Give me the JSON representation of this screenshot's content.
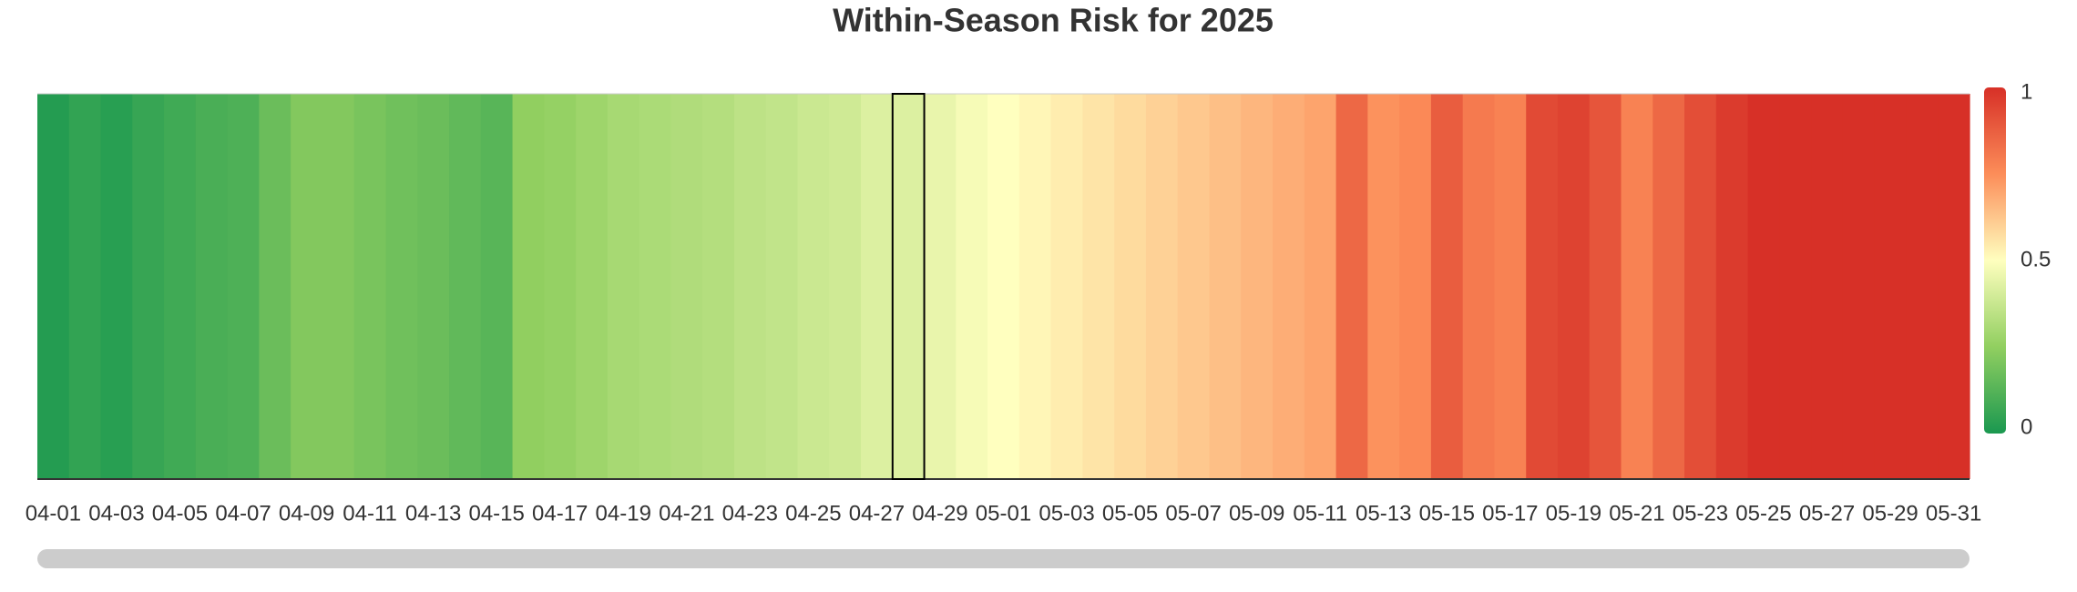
{
  "chart_data": {
    "type": "heatmap",
    "title": "Within-Season Risk for 2025",
    "categories": [
      "04-01",
      null,
      "04-03",
      null,
      "04-05",
      null,
      "04-07",
      null,
      "04-09",
      null,
      "04-11",
      null,
      "04-13",
      null,
      "04-15",
      null,
      "04-17",
      null,
      "04-19",
      null,
      "04-21",
      null,
      "04-23",
      null,
      "04-25",
      null,
      "04-27",
      null,
      "04-29",
      null,
      "05-01",
      null,
      "05-03",
      null,
      "05-05",
      null,
      "05-07",
      null,
      "05-09",
      null,
      "05-11",
      null,
      "05-13",
      null,
      "05-15",
      null,
      "05-17",
      null,
      "05-19",
      null,
      "05-21",
      null,
      "05-23",
      null,
      "05-25",
      null,
      "05-27",
      null,
      "05-29",
      null,
      "05-31"
    ],
    "values": [
      0.02,
      0.05,
      0.03,
      0.06,
      0.08,
      0.1,
      0.11,
      0.17,
      0.22,
      0.22,
      0.2,
      0.18,
      0.17,
      0.15,
      0.13,
      0.25,
      0.26,
      0.28,
      0.3,
      0.31,
      0.32,
      0.33,
      0.35,
      0.36,
      0.38,
      0.39,
      0.42,
      0.42,
      0.45,
      0.48,
      0.5,
      0.52,
      0.54,
      0.56,
      0.58,
      0.6,
      0.62,
      0.64,
      0.66,
      0.68,
      0.7,
      0.85,
      0.74,
      0.76,
      0.88,
      0.8,
      0.78,
      0.93,
      0.95,
      0.9,
      0.78,
      0.85,
      0.92,
      0.97,
      1,
      1,
      1,
      1,
      1,
      1,
      1
    ],
    "highlight": 27,
    "colorscale": [
      "#1a9850",
      "#91cf60",
      "#ffffbf",
      "#fc8d59",
      "#d73027"
    ],
    "clim": [
      0,
      1
    ],
    "cticks": [
      0,
      0.5,
      1
    ]
  }
}
